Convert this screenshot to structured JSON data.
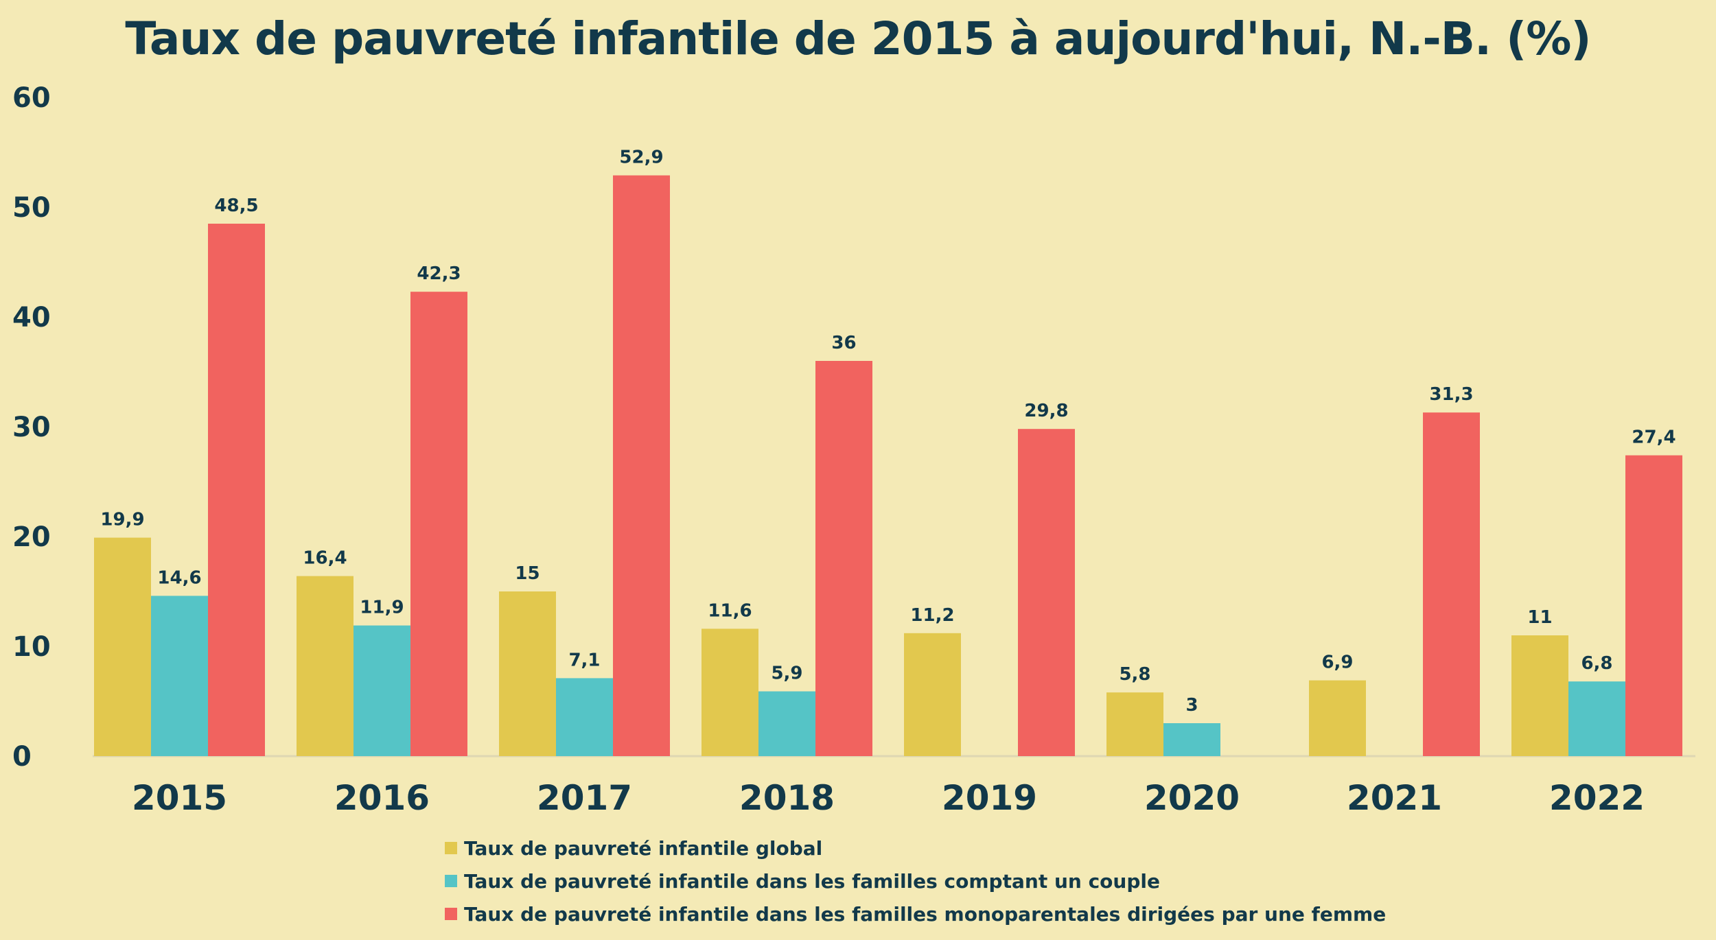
{
  "chart_data": {
    "type": "bar",
    "title": "Taux de pauvreté infantile de 2015 à aujourd'hui, N.-B. (%)",
    "xlabel": "",
    "ylabel": "",
    "ylim": [
      0,
      60
    ],
    "yticks": [
      "0",
      "10",
      "20",
      "30",
      "40",
      "50",
      "60"
    ],
    "grid": false,
    "legend_position": "bottom",
    "categories": [
      "2015",
      "2016",
      "2017",
      "2018",
      "2019",
      "2020",
      "2021",
      "2022"
    ],
    "series": [
      {
        "name": "Taux de pauvreté infantile global",
        "color": "#e2c84e",
        "values": [
          19.9,
          16.4,
          15,
          11.6,
          11.2,
          5.8,
          6.9,
          11
        ],
        "labels": [
          "19,9",
          "16,4",
          "15",
          "11,6",
          "11,2",
          "5,8",
          "6,9",
          "11"
        ]
      },
      {
        "name": "Taux de pauvreté infantile dans les familles comptant un couple",
        "color": "#55c4c6",
        "values": [
          14.6,
          11.9,
          7.1,
          5.9,
          null,
          3,
          null,
          6.8
        ],
        "labels": [
          "14,6",
          "11,9",
          "7,1",
          "5,9",
          null,
          "3",
          null,
          "6,8"
        ]
      },
      {
        "name": "Taux de pauvreté infantile dans les familles monoparentales dirigées par une femme",
        "color": "#f1635f",
        "values": [
          48.5,
          42.3,
          52.9,
          36,
          29.8,
          null,
          31.3,
          27.4
        ],
        "labels": [
          "48,5",
          "42,3",
          "52,9",
          "36",
          "29,8",
          null,
          "31,3",
          "27,4"
        ]
      }
    ]
  }
}
